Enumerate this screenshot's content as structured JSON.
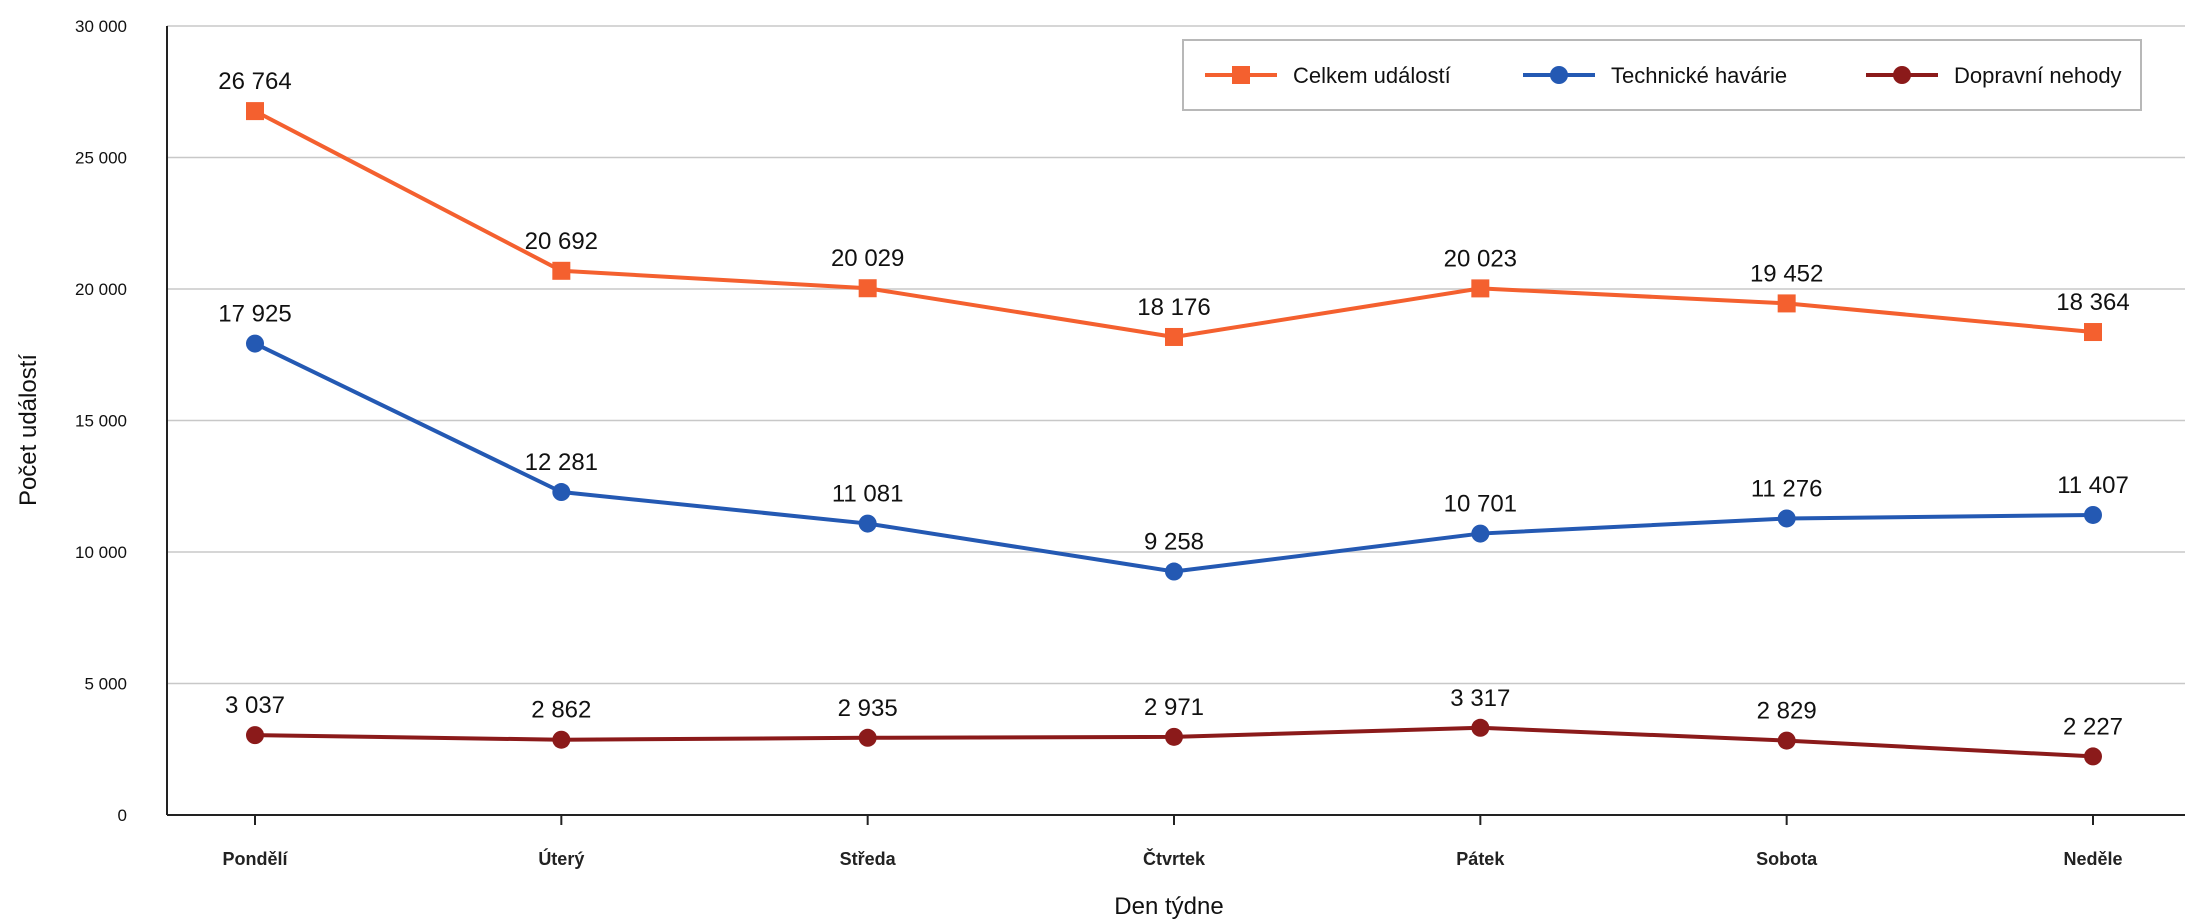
{
  "chart_data": {
    "type": "line",
    "title": "",
    "xlabel": "Den týdne",
    "ylabel": "Počet událostí",
    "categories": [
      "Pondělí",
      "Úterý",
      "Středa",
      "Čtvrtek",
      "Pátek",
      "Sobota",
      "Neděle"
    ],
    "ylim": [
      0,
      30000
    ],
    "yticks": [
      0,
      5000,
      10000,
      15000,
      20000,
      25000,
      30000
    ],
    "ytick_labels": [
      "0",
      "5 000",
      "10 000",
      "15 000",
      "20 000",
      "25 000",
      "30 000"
    ],
    "grid": true,
    "legend_position": "top-right",
    "series": [
      {
        "name": "Celkem událostí",
        "color": "#f4602f",
        "marker": "square",
        "values": [
          26764,
          20692,
          20029,
          18176,
          20023,
          19452,
          18364
        ],
        "labels": [
          "26 764",
          "20 692",
          "20 029",
          "18 176",
          "20 023",
          "19 452",
          "18 364"
        ]
      },
      {
        "name": "Technické havárie",
        "color": "#2459b3",
        "marker": "circle",
        "values": [
          17925,
          12281,
          11081,
          9258,
          10701,
          11276,
          11407
        ],
        "labels": [
          "17 925",
          "12 281",
          "11 081",
          "9 258",
          "10 701",
          "11 276",
          "11 407"
        ]
      },
      {
        "name": "Dopravní nehody",
        "color": "#8b1a1a",
        "marker": "circle",
        "values": [
          3037,
          2862,
          2935,
          2971,
          3317,
          2829,
          2227
        ],
        "labels": [
          "3 037",
          "2 862",
          "2 935",
          "2 971",
          "3 317",
          "2 829",
          "2 227"
        ]
      }
    ]
  }
}
